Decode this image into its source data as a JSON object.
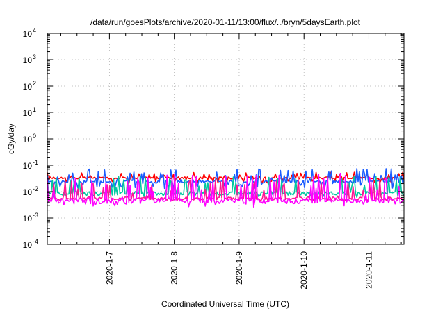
{
  "chart_data": {
    "type": "line",
    "title": "/data/run/goesPlots/archive/2020-01-11/13:00/flux/../bryn/5daysEarth.plot",
    "xlabel": "Coordinated Universal Time (UTC)",
    "ylabel": "cGy/day",
    "yscale": "log",
    "ylim": [
      0.0001,
      10000
    ],
    "y_ticks": [
      {
        "value": 0.0001,
        "base": "10",
        "exp": "-4"
      },
      {
        "value": 0.001,
        "base": "10",
        "exp": "-3"
      },
      {
        "value": 0.01,
        "base": "10",
        "exp": "-2"
      },
      {
        "value": 0.1,
        "base": "10",
        "exp": "-1"
      },
      {
        "value": 1,
        "base": "10",
        "exp": "0"
      },
      {
        "value": 10,
        "base": "10",
        "exp": "1"
      },
      {
        "value": 100,
        "base": "10",
        "exp": "2"
      },
      {
        "value": 1000,
        "base": "10",
        "exp": "3"
      },
      {
        "value": 10000,
        "base": "10",
        "exp": "4"
      }
    ],
    "xlim": [
      "2020-01-06 01:00",
      "2020-01-11 13:00"
    ],
    "x_ticks": [
      {
        "value": "2020-01-07 00:00",
        "label": "2020-1-7"
      },
      {
        "value": "2020-01-08 00:00",
        "label": "2020-1-8"
      },
      {
        "value": "2020-01-09 00:00",
        "label": "2020-1-9"
      },
      {
        "value": "2020-01-10 00:00",
        "label": "2020-1-10"
      },
      {
        "value": "2020-01-11 00:00",
        "label": "2020-1-11"
      }
    ],
    "grid": true,
    "legend": "none",
    "series": [
      {
        "color": "#ff0000",
        "baseline": 0.033,
        "spread": 0.18,
        "spike_max": 0.055,
        "dip_min": 0.02
      },
      {
        "color": "#1a5cff",
        "baseline": 0.024,
        "spread": 0.25,
        "spike_max": 0.075,
        "dip_min": 0.012
      },
      {
        "color": "#00c8a0",
        "baseline": 0.0085,
        "spread": 0.35,
        "spike_max": 0.04,
        "dip_min": 0.006
      },
      {
        "color": "#ff1493",
        "baseline": 0.0055,
        "spread": 0.3,
        "spike_max": 0.03,
        "dip_min": 0.0045
      },
      {
        "color": "#ff00ff",
        "baseline": 0.0045,
        "spread": 0.5,
        "spike_max": 0.05,
        "dip_min": 0.0025
      }
    ]
  }
}
